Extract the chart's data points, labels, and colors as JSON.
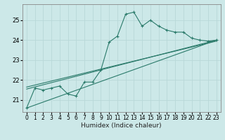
{
  "xlabel": "Humidex (Indice chaleur)",
  "background_color": "#cce8e8",
  "grid_color": "#b8d8d8",
  "line_color": "#2a7a6a",
  "xlim": [
    -0.5,
    23.5
  ],
  "ylim": [
    20.4,
    25.8
  ],
  "yticks": [
    21,
    22,
    23,
    24,
    25
  ],
  "xticks": [
    0,
    1,
    2,
    3,
    4,
    5,
    6,
    7,
    8,
    9,
    10,
    11,
    12,
    13,
    14,
    15,
    16,
    17,
    18,
    19,
    20,
    21,
    22,
    23
  ],
  "line1_x": [
    0,
    1,
    2,
    3,
    4,
    5,
    6,
    7,
    8,
    9,
    10,
    11,
    12,
    13,
    14,
    15,
    16,
    17,
    18,
    19,
    20,
    21,
    22,
    23
  ],
  "line1_y": [
    20.6,
    21.6,
    21.5,
    21.6,
    21.7,
    21.3,
    21.2,
    21.9,
    21.9,
    22.5,
    23.9,
    24.2,
    25.3,
    25.4,
    24.7,
    25.0,
    24.7,
    24.5,
    24.4,
    24.4,
    24.1,
    24.0,
    23.95,
    24.0
  ],
  "trend_lines": [
    {
      "x": [
        0,
        23
      ],
      "y": [
        20.6,
        24.0
      ]
    },
    {
      "x": [
        0,
        23
      ],
      "y": [
        21.55,
        24.0
      ]
    },
    {
      "x": [
        0,
        23
      ],
      "y": [
        21.65,
        23.95
      ]
    }
  ]
}
